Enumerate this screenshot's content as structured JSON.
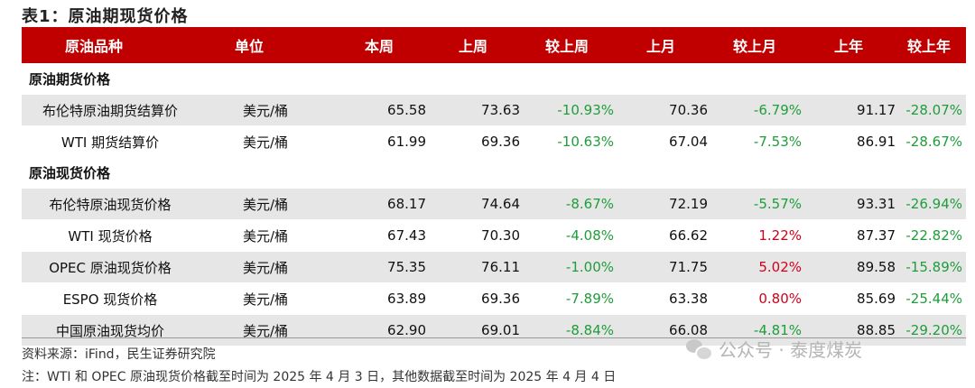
{
  "title": "表1：原油期现货价格",
  "header": [
    "原油品种",
    "单位",
    "本周",
    "上周",
    "较上周",
    "上月",
    "较上月",
    "上年",
    "较上年"
  ],
  "sections": [
    {
      "label": "原油期货价格",
      "rows": [
        {
          "name": "布伦特原油期货结算价",
          "unit": "美元/桶",
          "this_week": "65.58",
          "last_week": "73.63",
          "wow": "-10.93%",
          "wow_sign": "neg",
          "last_month": "70.36",
          "mom": "-6.79%",
          "mom_sign": "neg",
          "last_year": "91.17",
          "yoy": "-28.07%",
          "yoy_sign": "neg"
        },
        {
          "name": "WTI 期货结算价",
          "unit": "美元/桶",
          "this_week": "61.99",
          "last_week": "69.36",
          "wow": "-10.63%",
          "wow_sign": "neg",
          "last_month": "67.04",
          "mom": "-7.53%",
          "mom_sign": "neg",
          "last_year": "86.91",
          "yoy": "-28.67%",
          "yoy_sign": "neg"
        }
      ]
    },
    {
      "label": "原油现货价格",
      "rows": [
        {
          "name": "布伦特原油现货价格",
          "unit": "美元/桶",
          "this_week": "68.17",
          "last_week": "74.64",
          "wow": "-8.67%",
          "wow_sign": "neg",
          "last_month": "72.19",
          "mom": "-5.57%",
          "mom_sign": "neg",
          "last_year": "93.31",
          "yoy": "-26.94%",
          "yoy_sign": "neg"
        },
        {
          "name": "WTI 现货价格",
          "unit": "美元/桶",
          "this_week": "67.43",
          "last_week": "70.30",
          "wow": "-4.08%",
          "wow_sign": "neg",
          "last_month": "66.62",
          "mom": "1.22%",
          "mom_sign": "pos",
          "last_year": "87.37",
          "yoy": "-22.82%",
          "yoy_sign": "neg"
        },
        {
          "name": "OPEC 原油现货价格",
          "unit": "美元/桶",
          "this_week": "75.35",
          "last_week": "76.11",
          "wow": "-1.00%",
          "wow_sign": "neg",
          "last_month": "71.75",
          "mom": "5.02%",
          "mom_sign": "pos",
          "last_year": "89.58",
          "yoy": "-15.89%",
          "yoy_sign": "neg"
        },
        {
          "name": "ESPO 现货价格",
          "unit": "美元/桶",
          "this_week": "63.89",
          "last_week": "69.36",
          "wow": "-7.89%",
          "wow_sign": "neg",
          "last_month": "63.38",
          "mom": "0.80%",
          "mom_sign": "pos",
          "last_year": "85.69",
          "yoy": "-25.44%",
          "yoy_sign": "neg"
        },
        {
          "name": "中国原油现货均价",
          "unit": "美元/桶",
          "this_week": "62.90",
          "last_week": "69.01",
          "wow": "-8.84%",
          "wow_sign": "neg",
          "last_month": "66.08",
          "mom": "-4.81%",
          "mom_sign": "neg",
          "last_year": "88.85",
          "yoy": "-29.20%",
          "yoy_sign": "neg"
        }
      ]
    }
  ],
  "source": "资料来源：iFind，民生证券研究院",
  "note": "注：WTI 和 OPEC 原油现货价格截至时间为 2025 年 4 月 3 日，其他数据截至时间为 2025 年 4 月 4 日",
  "watermark": "公众号 · 泰度煤炭",
  "colors": {
    "header_bg": "#c00000",
    "alt_row": "#e6e6e6",
    "negative": "#1f9d3a",
    "positive": "#d0021b"
  }
}
